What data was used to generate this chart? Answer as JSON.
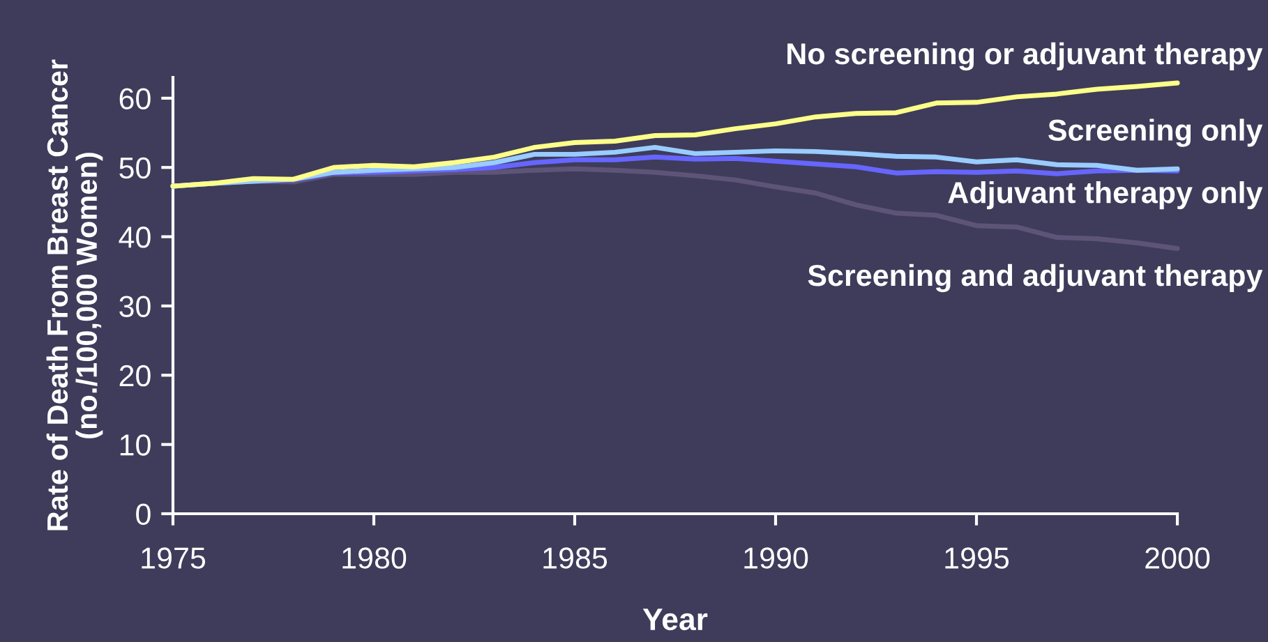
{
  "chart_data": {
    "type": "line",
    "xlabel": "Year",
    "ylabel": "Rate of Death From Breast Cancer\n(no./100,000 Women)",
    "x": [
      1975,
      1976,
      1977,
      1978,
      1979,
      1980,
      1981,
      1982,
      1983,
      1984,
      1985,
      1986,
      1987,
      1988,
      1989,
      1990,
      1991,
      1992,
      1993,
      1994,
      1995,
      1996,
      1997,
      1998,
      1999,
      2000
    ],
    "xlim": [
      1975,
      2000
    ],
    "xticks": [
      1975,
      1980,
      1985,
      1990,
      1995,
      2000
    ],
    "ylim": [
      0,
      63
    ],
    "yticks": [
      0,
      10,
      20,
      30,
      40,
      50,
      60
    ],
    "grid": false,
    "legend": false,
    "marker": "none",
    "line_style": "solid",
    "series": [
      {
        "name": "No screening or adjuvant therapy",
        "color": "#fdfd8a",
        "values": [
          47.3,
          47.7,
          48.4,
          48.3,
          50.0,
          50.3,
          50.1,
          50.7,
          51.5,
          52.9,
          53.6,
          53.8,
          54.6,
          54.7,
          55.6,
          56.3,
          57.3,
          57.8,
          57.9,
          59.3,
          59.4,
          60.2,
          60.6,
          61.3,
          61.7,
          62.2
        ]
      },
      {
        "name": "Screening only",
        "color": "#99ccff",
        "values": [
          47.3,
          47.7,
          48.0,
          48.3,
          49.3,
          49.6,
          49.8,
          50.0,
          50.7,
          51.9,
          51.9,
          52.2,
          52.9,
          52.0,
          52.2,
          52.4,
          52.3,
          52.0,
          51.6,
          51.5,
          50.8,
          51.1,
          50.4,
          50.3,
          49.6,
          49.8
        ]
      },
      {
        "name": "Adjuvant therapy only",
        "color": "#6666ff",
        "values": [
          47.3,
          47.7,
          48.0,
          48.2,
          49.2,
          49.3,
          49.5,
          49.7,
          50.0,
          50.7,
          51.1,
          51.1,
          51.5,
          51.2,
          51.3,
          50.9,
          50.5,
          50.1,
          49.2,
          49.4,
          49.3,
          49.5,
          49.1,
          49.5,
          49.6,
          49.5
        ]
      },
      {
        "name": "Screening and adjuvant therapy",
        "color": "#5e5478",
        "values": [
          47.3,
          47.7,
          48.0,
          47.9,
          49.0,
          49.0,
          49.0,
          49.3,
          49.3,
          49.6,
          49.8,
          49.6,
          49.3,
          48.8,
          48.2,
          47.2,
          46.3,
          44.6,
          43.4,
          43.1,
          41.6,
          41.4,
          39.9,
          39.7,
          39.1,
          38.3
        ]
      }
    ]
  }
}
